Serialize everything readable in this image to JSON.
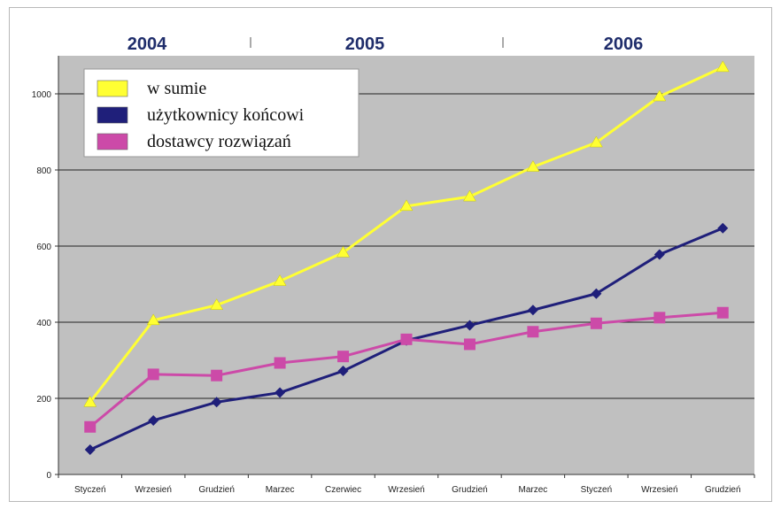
{
  "chart_data": {
    "type": "line",
    "title": "",
    "xlabel": "",
    "ylabel": "",
    "ylim": [
      0,
      1100
    ],
    "yticks": [
      0,
      200,
      400,
      600,
      800,
      1000
    ],
    "categories": [
      "Styczeń",
      "Wrzesień",
      "Grudzień",
      "Marzec",
      "Czerwiec",
      "Wrzesień",
      "Grudzień",
      "Marzec",
      "Styczeń",
      "Wrzesień",
      "Grudzień"
    ],
    "year_labels": [
      "2004",
      "2005",
      "2006"
    ],
    "grid": true,
    "legend_position": "top-left",
    "background_color": "#c0c0c0",
    "series": [
      {
        "name": "w sumie",
        "color": "#ffff33",
        "marker": "triangle",
        "values": [
          190,
          405,
          445,
          508,
          583,
          705,
          730,
          808,
          872,
          993,
          1070
        ]
      },
      {
        "name": "użytkownicy końcowi",
        "color": "#1f1f7a",
        "marker": "diamond",
        "values": [
          65,
          142,
          190,
          215,
          272,
          352,
          392,
          432,
          475,
          578,
          647
        ]
      },
      {
        "name": "dostawcy rozwiązań",
        "color": "#cc4aa8",
        "marker": "square",
        "values": [
          125,
          263,
          260,
          293,
          310,
          355,
          342,
          375,
          397,
          412,
          425
        ]
      }
    ]
  }
}
